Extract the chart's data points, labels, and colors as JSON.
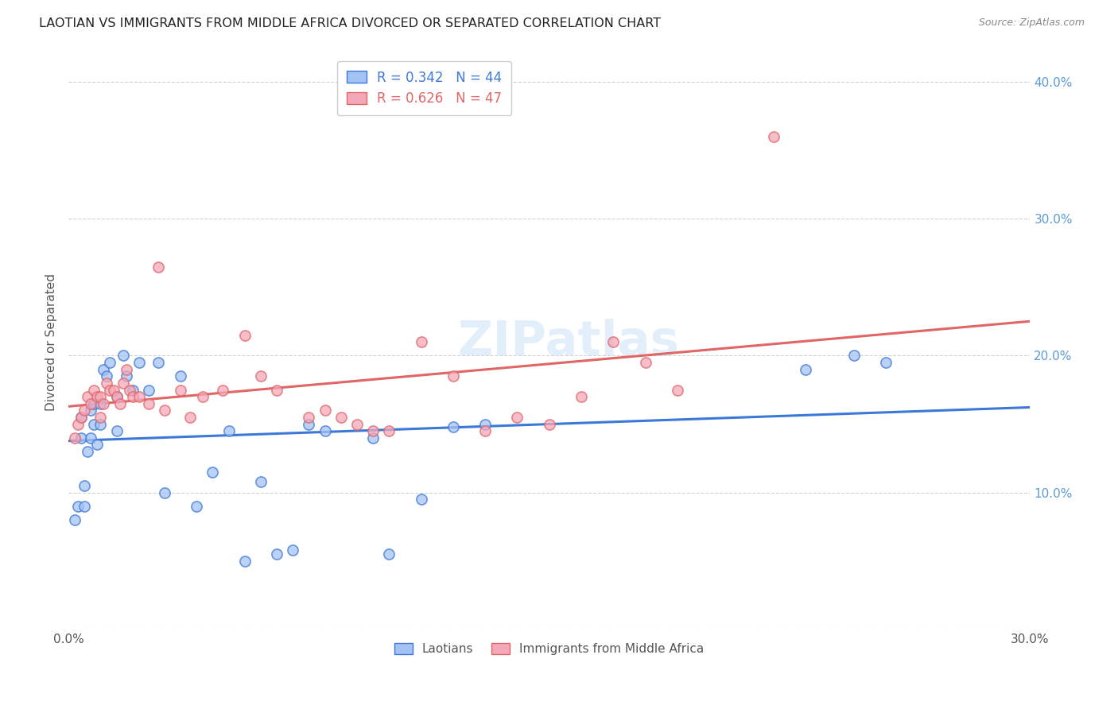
{
  "title": "LAOTIAN VS IMMIGRANTS FROM MIDDLE AFRICA DIVORCED OR SEPARATED CORRELATION CHART",
  "source": "Source: ZipAtlas.com",
  "ylabel": "Divorced or Separated",
  "xlim": [
    0.0,
    0.3
  ],
  "ylim": [
    0.0,
    0.42
  ],
  "xticks": [
    0.0,
    0.05,
    0.1,
    0.15,
    0.2,
    0.25,
    0.3
  ],
  "yticks": [
    0.0,
    0.1,
    0.2,
    0.3,
    0.4
  ],
  "ytick_labels": [
    "",
    "10.0%",
    "20.0%",
    "30.0%",
    "40.0%"
  ],
  "xtick_labels": [
    "0.0%",
    "",
    "",
    "",
    "",
    "",
    "30.0%"
  ],
  "legend_label1": "Laotians",
  "legend_label2": "Immigrants from Middle Africa",
  "R1": 0.342,
  "N1": 44,
  "R2": 0.626,
  "N2": 47,
  "color1": "#a4c2f4",
  "color2": "#f4a7b9",
  "line_color1": "#3c78d8",
  "line_color2": "#e06666",
  "watermark": "ZIPatlas",
  "blue_points_x": [
    0.002,
    0.003,
    0.004,
    0.004,
    0.005,
    0.005,
    0.006,
    0.007,
    0.007,
    0.008,
    0.008,
    0.009,
    0.01,
    0.01,
    0.011,
    0.012,
    0.013,
    0.015,
    0.015,
    0.017,
    0.018,
    0.02,
    0.022,
    0.025,
    0.028,
    0.03,
    0.035,
    0.04,
    0.045,
    0.05,
    0.055,
    0.06,
    0.065,
    0.07,
    0.075,
    0.08,
    0.095,
    0.1,
    0.11,
    0.12,
    0.13,
    0.23,
    0.245,
    0.255
  ],
  "blue_points_y": [
    0.08,
    0.09,
    0.14,
    0.155,
    0.09,
    0.105,
    0.13,
    0.14,
    0.16,
    0.15,
    0.165,
    0.135,
    0.15,
    0.165,
    0.19,
    0.185,
    0.195,
    0.145,
    0.17,
    0.2,
    0.185,
    0.175,
    0.195,
    0.175,
    0.195,
    0.1,
    0.185,
    0.09,
    0.115,
    0.145,
    0.05,
    0.108,
    0.055,
    0.058,
    0.15,
    0.145,
    0.14,
    0.055,
    0.095,
    0.148,
    0.15,
    0.19,
    0.2,
    0.195
  ],
  "pink_points_x": [
    0.002,
    0.003,
    0.004,
    0.005,
    0.006,
    0.007,
    0.008,
    0.009,
    0.01,
    0.01,
    0.011,
    0.012,
    0.013,
    0.014,
    0.015,
    0.016,
    0.017,
    0.018,
    0.019,
    0.02,
    0.022,
    0.025,
    0.028,
    0.03,
    0.035,
    0.038,
    0.042,
    0.048,
    0.055,
    0.06,
    0.065,
    0.075,
    0.08,
    0.085,
    0.09,
    0.095,
    0.1,
    0.11,
    0.12,
    0.13,
    0.14,
    0.15,
    0.16,
    0.17,
    0.18,
    0.19,
    0.22
  ],
  "pink_points_y": [
    0.14,
    0.15,
    0.155,
    0.16,
    0.17,
    0.165,
    0.175,
    0.17,
    0.155,
    0.17,
    0.165,
    0.18,
    0.175,
    0.175,
    0.17,
    0.165,
    0.18,
    0.19,
    0.175,
    0.17,
    0.17,
    0.165,
    0.265,
    0.16,
    0.175,
    0.155,
    0.17,
    0.175,
    0.215,
    0.185,
    0.175,
    0.155,
    0.16,
    0.155,
    0.15,
    0.145,
    0.145,
    0.21,
    0.185,
    0.145,
    0.155,
    0.15,
    0.17,
    0.21,
    0.195,
    0.175,
    0.36
  ]
}
